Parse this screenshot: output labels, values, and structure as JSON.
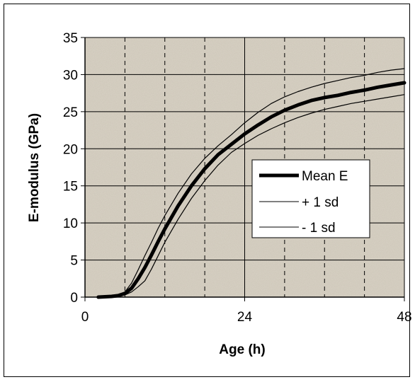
{
  "chart_data": {
    "type": "line",
    "xlabel": "Age (h)",
    "ylabel": "E-modulus (GPa)",
    "xlim": [
      0,
      48
    ],
    "ylim": [
      0,
      35
    ],
    "xticks": [
      0,
      24,
      48
    ],
    "yticks": [
      0,
      5,
      10,
      15,
      20,
      25,
      30,
      35
    ],
    "dashed_vlines": [
      6,
      12,
      18,
      30,
      36,
      42
    ],
    "solid_vlines": [
      24
    ],
    "grid": true,
    "legend_position": "right",
    "series": [
      {
        "name": "Mean E",
        "style": "thick",
        "x": [
          2,
          4,
          5,
          6,
          7,
          8,
          9,
          10,
          11,
          12,
          14,
          16,
          18,
          20,
          22,
          24,
          26,
          28,
          30,
          32,
          34,
          36,
          38,
          40,
          42,
          44,
          46,
          48
        ],
        "y": [
          0,
          0.1,
          0.2,
          0.5,
          1.2,
          2.5,
          4.0,
          5.7,
          7.5,
          9.2,
          12.3,
          15.0,
          17.3,
          19.2,
          20.6,
          22.0,
          23.2,
          24.3,
          25.2,
          25.9,
          26.5,
          26.9,
          27.2,
          27.6,
          27.9,
          28.3,
          28.6,
          28.9
        ]
      },
      {
        "name": "+ 1 sd",
        "style": "thin",
        "x": [
          2,
          4,
          5,
          6,
          7,
          8,
          9,
          10,
          11,
          12,
          14,
          16,
          18,
          20,
          22,
          24,
          26,
          28,
          30,
          32,
          34,
          36,
          38,
          40,
          42,
          44,
          46,
          48
        ],
        "y": [
          0,
          0.1,
          0.3,
          0.7,
          1.9,
          3.7,
          5.6,
          7.4,
          9.3,
          11.0,
          14.0,
          16.6,
          18.7,
          20.4,
          21.9,
          23.5,
          24.9,
          26.1,
          27.0,
          27.7,
          28.3,
          28.8,
          29.2,
          29.6,
          29.9,
          30.3,
          30.6,
          30.8
        ]
      },
      {
        "name": "- 1 sd",
        "style": "thin",
        "x": [
          2,
          4,
          5,
          6,
          7,
          8,
          9,
          10,
          11,
          12,
          14,
          16,
          18,
          20,
          22,
          24,
          26,
          28,
          30,
          32,
          34,
          36,
          38,
          40,
          42,
          44,
          46,
          48
        ],
        "y": [
          0,
          0.05,
          0.1,
          0.3,
          0.7,
          1.4,
          2.2,
          3.8,
          5.6,
          7.4,
          10.5,
          13.3,
          15.7,
          17.8,
          19.5,
          20.7,
          21.8,
          22.7,
          23.5,
          24.2,
          24.8,
          25.3,
          25.7,
          26.1,
          26.4,
          26.7,
          27.0,
          27.3
        ]
      }
    ]
  },
  "colors": {
    "plot_bg": "#d8d2c5",
    "grid": "#000000",
    "line": "#000000"
  }
}
